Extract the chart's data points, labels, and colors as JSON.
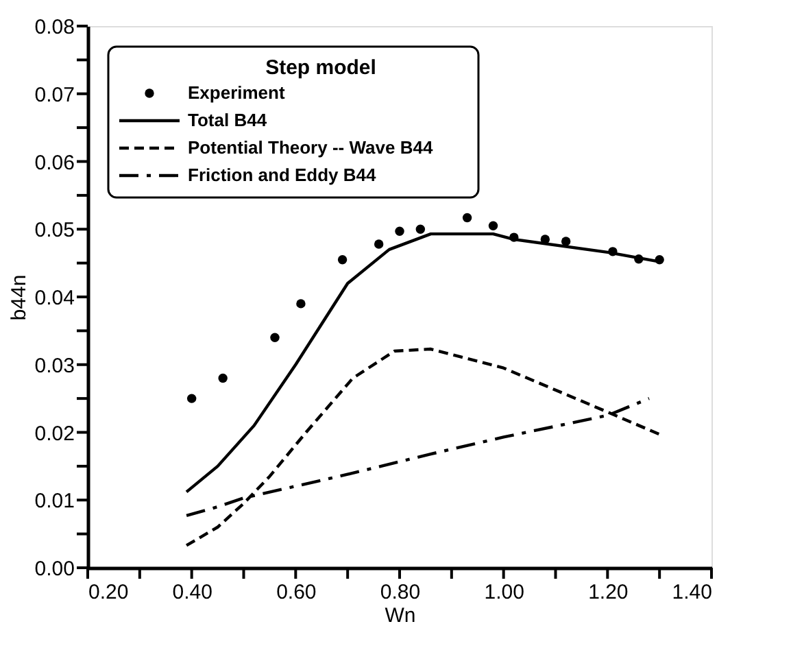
{
  "chart_data": {
    "type": "line",
    "xlabel": "Wn",
    "ylabel": "b44n",
    "legend_title": "Step model",
    "legend": "top left",
    "grid": false,
    "xlim": [
      0.2,
      1.4
    ],
    "ylim": [
      0,
      0.08
    ],
    "xticks": [
      {
        "value": 0.2,
        "label": "0.20"
      },
      {
        "value": 0.3,
        "label": null
      },
      {
        "value": 0.4,
        "label": "0.40"
      },
      {
        "value": 0.5,
        "label": null
      },
      {
        "value": 0.6,
        "label": "0.60"
      },
      {
        "value": 0.7,
        "label": null
      },
      {
        "value": 0.8,
        "label": "0.80"
      },
      {
        "value": 0.9,
        "label": null
      },
      {
        "value": 1.0,
        "label": "1.00"
      },
      {
        "value": 1.1,
        "label": null
      },
      {
        "value": 1.2,
        "label": "1.20"
      },
      {
        "value": 1.3,
        "label": null
      },
      {
        "value": 1.4,
        "label": "1.40"
      }
    ],
    "yticks": [
      {
        "value": 0,
        "label": "0.00"
      },
      {
        "value": 0.005,
        "label": null
      },
      {
        "value": 0.01,
        "label": "0.01"
      },
      {
        "value": 0.015,
        "label": null
      },
      {
        "value": 0.02,
        "label": "0.02"
      },
      {
        "value": 0.025,
        "label": null
      },
      {
        "value": 0.03,
        "label": "0.03"
      },
      {
        "value": 0.035,
        "label": null
      },
      {
        "value": 0.04,
        "label": "0.04"
      },
      {
        "value": 0.045,
        "label": null
      },
      {
        "value": 0.05,
        "label": "0.05"
      },
      {
        "value": 0.055,
        "label": null
      },
      {
        "value": 0.06,
        "label": "0.06"
      },
      {
        "value": 0.065,
        "label": null
      },
      {
        "value": 0.07,
        "label": "0.07"
      },
      {
        "value": 0.075,
        "label": null
      },
      {
        "value": 0.08,
        "label": "0.08"
      }
    ],
    "series": [
      {
        "name": "Experiment",
        "type": "scatter",
        "marker": "circle",
        "color": "#000000",
        "x": [
          0.4,
          0.46,
          0.56,
          0.61,
          0.69,
          0.76,
          0.8,
          0.84,
          0.93,
          0.98,
          1.02,
          1.08,
          1.12,
          1.21,
          1.26,
          1.3
        ],
        "values": [
          0.025,
          0.028,
          0.034,
          0.039,
          0.0455,
          0.0478,
          0.0497,
          0.05,
          0.0517,
          0.0505,
          0.0488,
          0.0485,
          0.0482,
          0.0467,
          0.0456,
          0.0455
        ]
      },
      {
        "name": "Total B44",
        "line_style": "solid",
        "color": "#000000",
        "x": [
          0.39,
          0.45,
          0.52,
          0.6,
          0.65,
          0.7,
          0.78,
          0.86,
          0.98,
          1.02,
          1.2,
          1.3
        ],
        "values": [
          0.0112,
          0.015,
          0.021,
          0.03,
          0.036,
          0.042,
          0.047,
          0.0493,
          0.0493,
          0.0485,
          0.0466,
          0.0452
        ]
      },
      {
        "name": "Potential Theory -- Wave B44",
        "line_style": "dashed",
        "color": "#000000",
        "x": [
          0.39,
          0.45,
          0.5,
          0.55,
          0.62,
          0.71,
          0.79,
          0.86,
          1.0,
          1.2,
          1.3
        ],
        "values": [
          0.0033,
          0.006,
          0.0095,
          0.0135,
          0.02,
          0.028,
          0.032,
          0.0323,
          0.0295,
          0.023,
          0.0197
        ]
      },
      {
        "name": "Friction and Eddy B44",
        "line_style": "dashdot",
        "color": "#000000",
        "x": [
          0.39,
          0.45,
          0.5,
          0.7,
          0.86,
          1.0,
          1.2,
          1.28
        ],
        "values": [
          0.0077,
          0.009,
          0.0103,
          0.0138,
          0.0168,
          0.0193,
          0.0225,
          0.025
        ]
      }
    ]
  }
}
